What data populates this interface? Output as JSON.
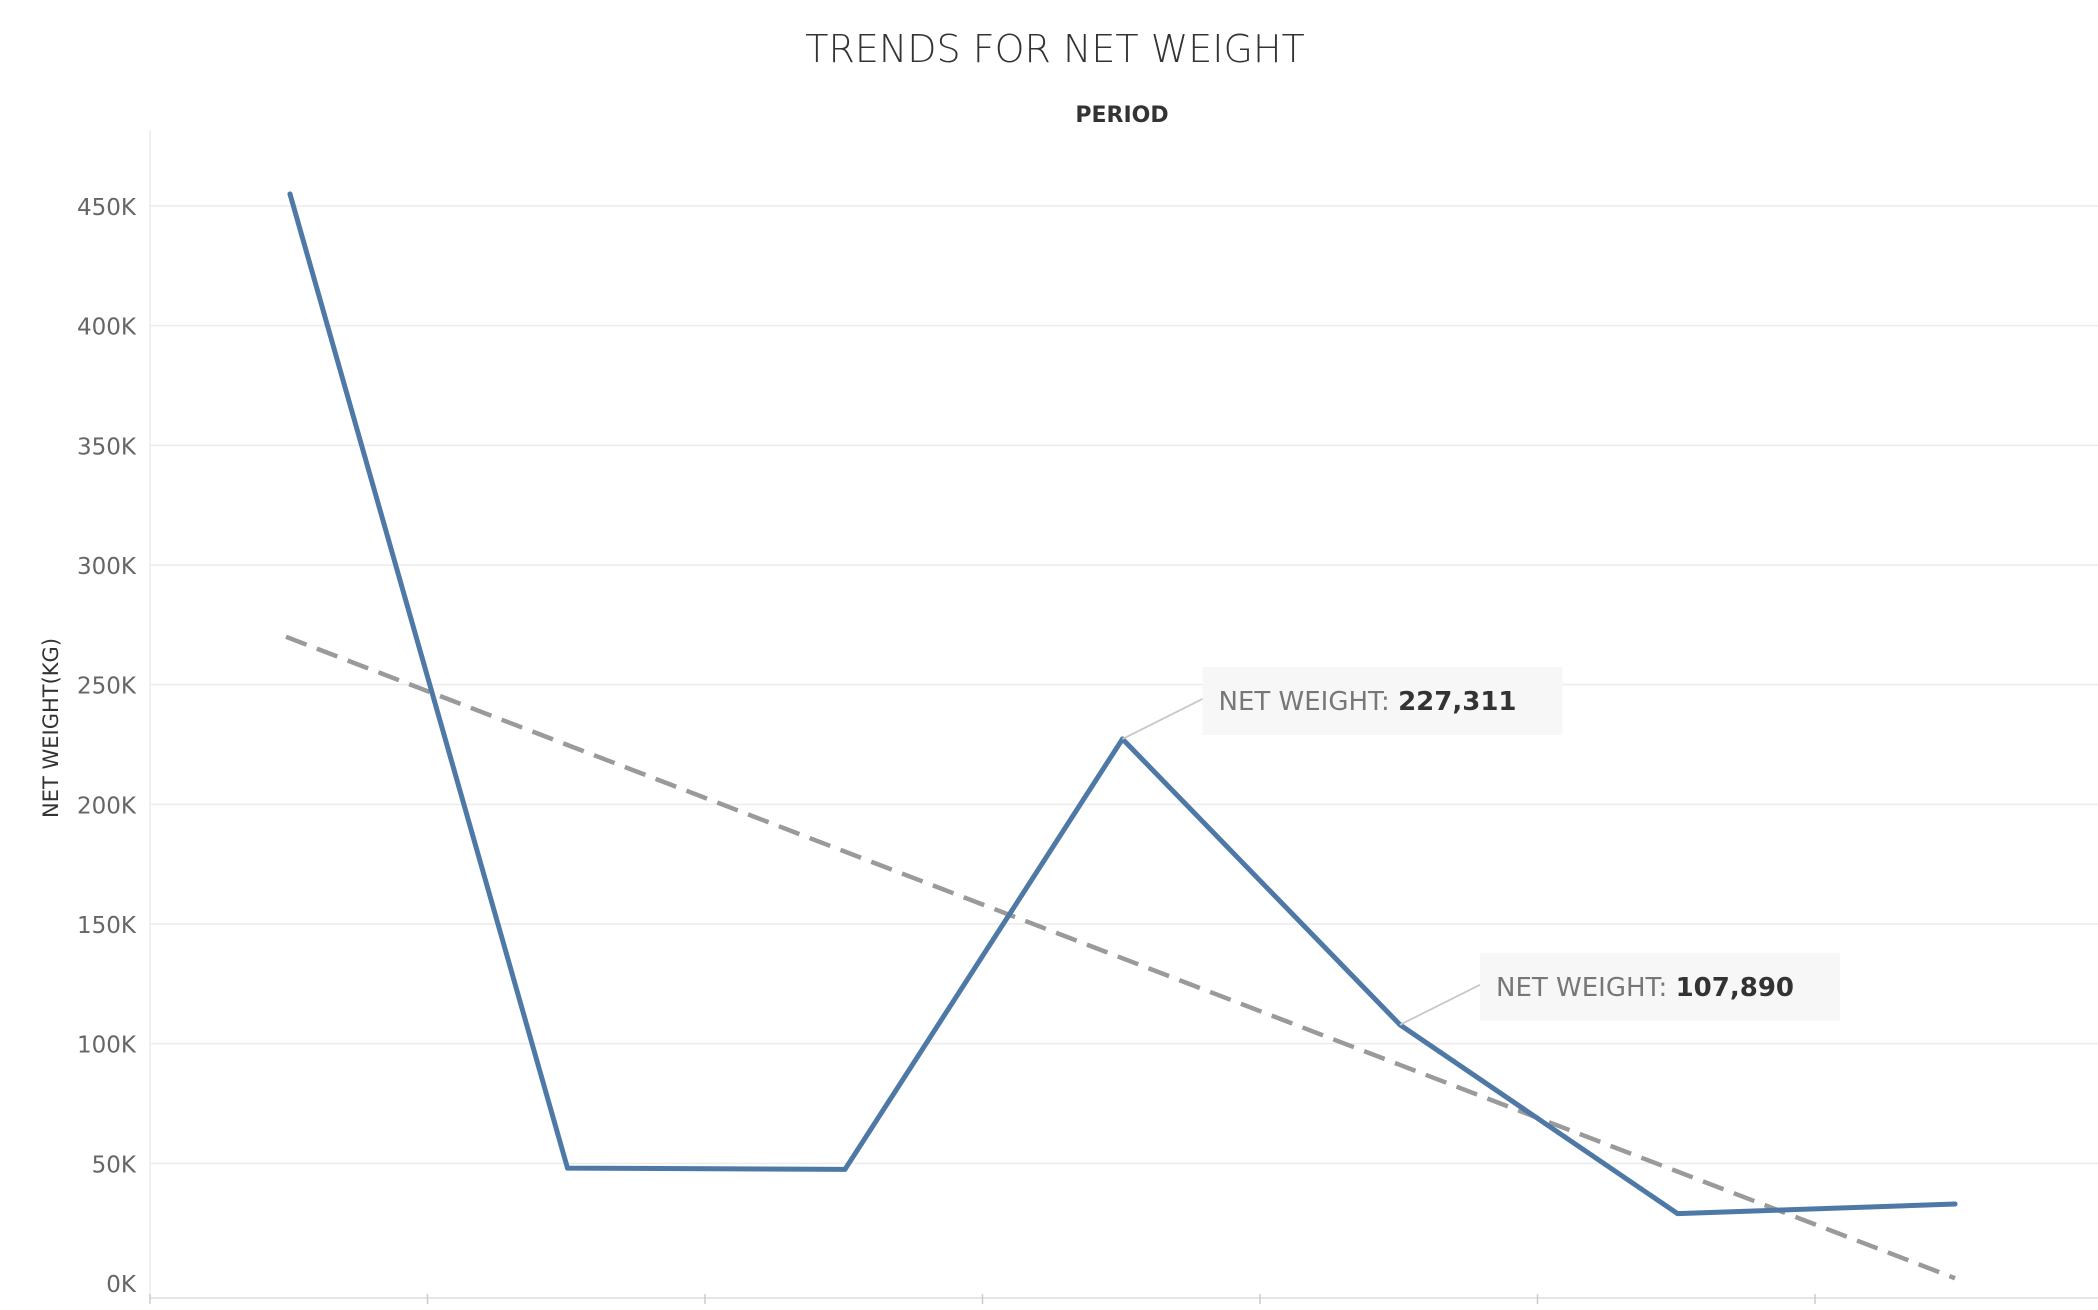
{
  "chart_data": {
    "type": "line",
    "title": "TRENDS FOR NET WEIGHT",
    "xlabel": "PERIOD",
    "ylabel": "NET WEIGHT(KG)",
    "ylim": [
      0,
      475000
    ],
    "yticks": [
      0,
      50000,
      100000,
      150000,
      200000,
      250000,
      300000,
      350000,
      400000,
      450000
    ],
    "ytick_labels": [
      "0K",
      "50K",
      "100K",
      "150K",
      "200K",
      "250K",
      "300K",
      "350K",
      "400K",
      "450K"
    ],
    "x": [
      1,
      2,
      3,
      4,
      5,
      6,
      7
    ],
    "series": [
      {
        "values": [
          455000,
          48000,
          47500,
          227311,
          107890,
          29000,
          33000
        ],
        "color": "#4e79a7"
      }
    ],
    "trend_line": {
      "start": 270000,
      "end": 2000,
      "color": "#9a9a9a",
      "style": "dashed"
    },
    "annotations": [
      {
        "point_index": 3,
        "label": "NET WEIGHT:",
        "value": "227,311"
      },
      {
        "point_index": 4,
        "label": "NET WEIGHT:",
        "value": "107,890"
      }
    ],
    "grid": true,
    "legend": "none"
  }
}
